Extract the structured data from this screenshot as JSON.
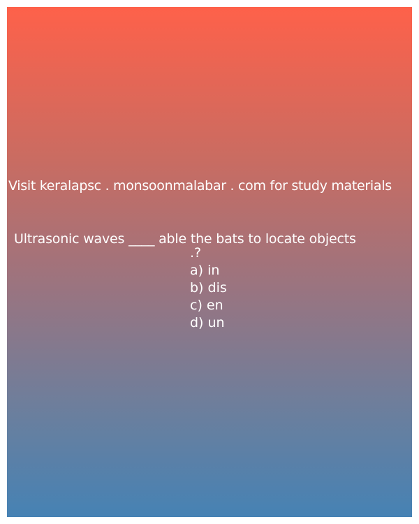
{
  "banner": {
    "visit_text": "Visit keralapsc . monsoonmalabar . com for study materials"
  },
  "question": {
    "text": "Ultrasonic waves ____ able the bats to locate objects",
    "tail": ".?"
  },
  "options": [
    {
      "label": "a) in"
    },
    {
      "label": "b) dis"
    },
    {
      "label": "c) en"
    },
    {
      "label": "d) un"
    }
  ],
  "colors": {
    "gradient_top": "#fe614a",
    "gradient_bottom": "#4682b4",
    "text": "#ffffff"
  }
}
